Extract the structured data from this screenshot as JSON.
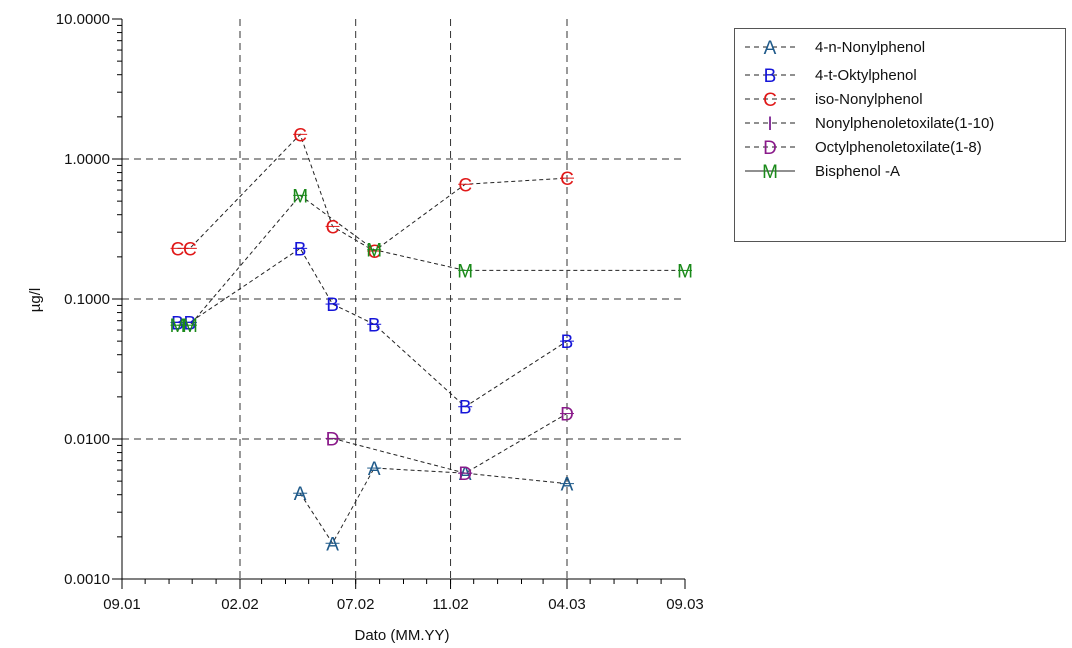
{
  "chart_data": {
    "type": "scatter",
    "ylabel": "µg/l",
    "xlabel": "Dato (MM.YY)",
    "yscale": "log",
    "ylim": [
      0.001,
      10
    ],
    "xlim": [
      "2001-09",
      "2003-09"
    ],
    "y_ticks": [
      "0.0010",
      "0.0100",
      "0.1000",
      "1.0000",
      "10.0000"
    ],
    "x_ticks": [
      "09.01",
      "02.02",
      "07.02",
      "11.02",
      "04.03",
      "09.03"
    ],
    "x_tick_dates": [
      "2001-09-01",
      "2002-02-01",
      "2002-07-01",
      "2002-11-01",
      "2003-04-01",
      "2003-09-01"
    ],
    "grid": true,
    "legend_position": "right",
    "series": [
      {
        "name": "4-n-Nonylphenol",
        "marker": "A",
        "color": "#1f5a8a",
        "line": "dashed",
        "points": [
          {
            "x": "2002-04-20",
            "y": 0.0041
          },
          {
            "x": "2002-06-01",
            "y": 0.0018
          },
          {
            "x": "2002-07-25",
            "y": 0.0062
          },
          {
            "x": "2002-11-20",
            "y": 0.0057
          },
          {
            "x": "2003-04-01",
            "y": 0.0048
          }
        ]
      },
      {
        "name": "4-t-Oktylphenol",
        "marker": "B",
        "color": "#1515d8",
        "line": "dashed",
        "points": [
          {
            "x": "2001-11-12",
            "y": 0.068
          },
          {
            "x": "2001-11-28",
            "y": 0.068
          },
          {
            "x": "2002-04-20",
            "y": 0.23
          },
          {
            "x": "2002-06-01",
            "y": 0.092
          },
          {
            "x": "2002-07-25",
            "y": 0.066
          },
          {
            "x": "2002-11-20",
            "y": 0.017
          },
          {
            "x": "2003-04-01",
            "y": 0.05
          }
        ]
      },
      {
        "name": "iso-Nonylphenol",
        "marker": "C",
        "color": "#e01818",
        "line": "dashed",
        "points": [
          {
            "x": "2001-11-12",
            "y": 0.23
          },
          {
            "x": "2001-11-28",
            "y": 0.23
          },
          {
            "x": "2002-04-20",
            "y": 1.5
          },
          {
            "x": "2002-06-01",
            "y": 0.33
          },
          {
            "x": "2002-07-25",
            "y": 0.22
          },
          {
            "x": "2002-11-20",
            "y": 0.66
          },
          {
            "x": "2003-04-01",
            "y": 0.73
          }
        ]
      },
      {
        "name": "Nonylphenoletoxilate(1-10)",
        "marker": "I",
        "color": "#7a1f8f",
        "line": "dashed",
        "points": []
      },
      {
        "name": "Octylphenoletoxilate(1-8)",
        "marker": "D",
        "color": "#8a1a8a",
        "line": "dashed",
        "points": [
          {
            "x": "2002-06-01",
            "y": 0.0101
          },
          {
            "x": "2002-11-20",
            "y": 0.0057
          },
          {
            "x": "2003-04-01",
            "y": 0.0152
          }
        ]
      },
      {
        "name": "Bisphenol -A",
        "marker": "M",
        "color": "#1a8a1a",
        "line": "dashed",
        "points": [
          {
            "x": "2001-11-12",
            "y": 0.065
          },
          {
            "x": "2001-11-28",
            "y": 0.065
          },
          {
            "x": "2002-04-20",
            "y": 0.55
          },
          {
            "x": "2002-07-25",
            "y": 0.225
          },
          {
            "x": "2002-11-20",
            "y": 0.16
          },
          {
            "x": "2003-09-01",
            "y": 0.16
          }
        ]
      }
    ]
  },
  "legend": {
    "items": [
      {
        "label": "4-n-Nonylphenol"
      },
      {
        "label": "4-t-Oktylphenol"
      },
      {
        "label": "iso-Nonylphenol"
      },
      {
        "label": "Nonylphenoletoxilate(1-10)"
      },
      {
        "label": "Octylphenoletoxilate(1-8)"
      },
      {
        "label": "Bisphenol -A"
      }
    ]
  }
}
